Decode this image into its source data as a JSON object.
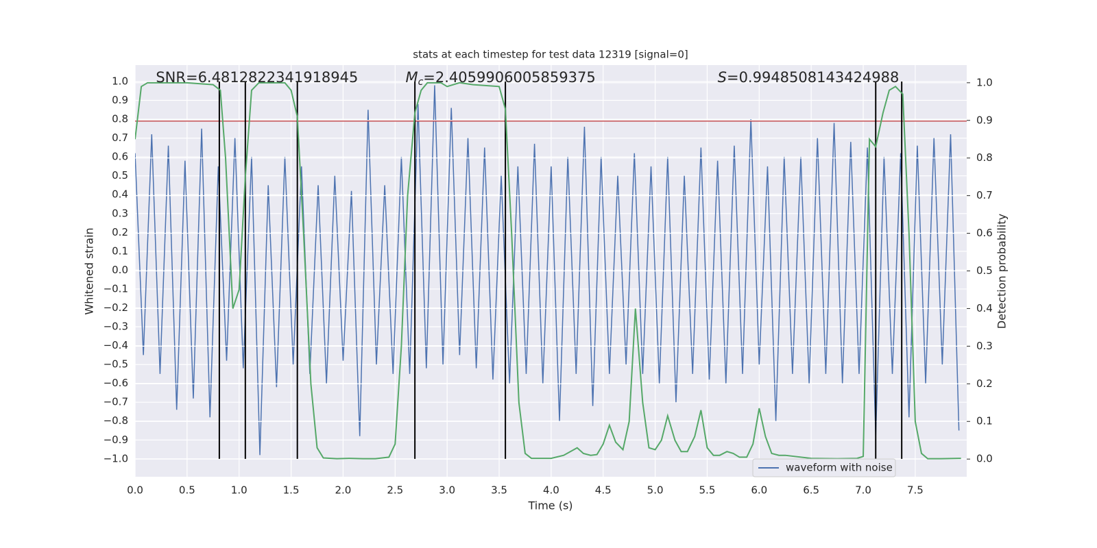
{
  "chart_data": {
    "type": "line",
    "title": "stats at each timestep for test data 12319 [signal=0]",
    "xlabel": "Time (s)",
    "ylabel": "Whitened strain",
    "y2label": "Detection probability",
    "grid": true,
    "background": "#eaeaf2",
    "legend": "lower right",
    "xlim": [
      0,
      7.995
    ],
    "ylim": [
      -1.095,
      1.087
    ],
    "y2lim": [
      -0.047,
      1.047
    ],
    "xticks": [
      {
        "value": 0,
        "label": "0.0"
      },
      {
        "value": 0.5,
        "label": "0.5"
      },
      {
        "value": 1,
        "label": "1.0"
      },
      {
        "value": 1.5,
        "label": "1.5"
      },
      {
        "value": 2,
        "label": "2.0"
      },
      {
        "value": 2.5,
        "label": "2.5"
      },
      {
        "value": 3,
        "label": "3.0"
      },
      {
        "value": 3.5,
        "label": "3.5"
      },
      {
        "value": 4,
        "label": "4.0"
      },
      {
        "value": 4.5,
        "label": "4.5"
      },
      {
        "value": 5,
        "label": "5.0"
      },
      {
        "value": 5.5,
        "label": "5.5"
      },
      {
        "value": 6,
        "label": "6.0"
      },
      {
        "value": 6.5,
        "label": "6.5"
      },
      {
        "value": 7,
        "label": "7.0"
      },
      {
        "value": 7.5,
        "label": "7.5"
      }
    ],
    "yticks": [
      {
        "value": -1,
        "label": "−1.0"
      },
      {
        "value": -0.9,
        "label": "−0.9"
      },
      {
        "value": -0.8,
        "label": "−0.8"
      },
      {
        "value": -0.7,
        "label": "−0.7"
      },
      {
        "value": -0.6,
        "label": "−0.6"
      },
      {
        "value": -0.5,
        "label": "−0.5"
      },
      {
        "value": -0.4,
        "label": "−0.4"
      },
      {
        "value": -0.3,
        "label": "−0.3"
      },
      {
        "value": -0.2,
        "label": "−0.2"
      },
      {
        "value": -0.1,
        "label": "−0.1"
      },
      {
        "value": 0,
        "label": "0.0"
      },
      {
        "value": 0.1,
        "label": "0.1"
      },
      {
        "value": 0.2,
        "label": "0.2"
      },
      {
        "value": 0.3,
        "label": "0.3"
      },
      {
        "value": 0.4,
        "label": "0.4"
      },
      {
        "value": 0.5,
        "label": "0.5"
      },
      {
        "value": 0.6,
        "label": "0.6"
      },
      {
        "value": 0.7,
        "label": "0.7"
      },
      {
        "value": 0.8,
        "label": "0.8"
      },
      {
        "value": 0.9,
        "label": "0.9"
      },
      {
        "value": 1,
        "label": "1.0"
      }
    ],
    "y2ticks": [
      {
        "value": 0,
        "label": "0.0"
      },
      {
        "value": 0.1,
        "label": "0.1"
      },
      {
        "value": 0.2,
        "label": "0.2"
      },
      {
        "value": 0.3,
        "label": "0.3"
      },
      {
        "value": 0.4,
        "label": "0.4"
      },
      {
        "value": 0.5,
        "label": "0.5"
      },
      {
        "value": 0.6,
        "label": "0.6"
      },
      {
        "value": 0.7,
        "label": "0.7"
      },
      {
        "value": 0.8,
        "label": "0.8"
      },
      {
        "value": 0.9,
        "label": "0.9"
      },
      {
        "value": 1,
        "label": "1.0"
      }
    ],
    "series": [
      {
        "name": "waveform with noise",
        "color": "#4c72b0",
        "x": [
          0,
          0.08,
          0.16,
          0.24,
          0.32,
          0.4,
          0.48,
          0.56,
          0.64,
          0.72,
          0.8,
          0.88,
          0.96,
          1.04,
          1.12,
          1.2,
          1.28,
          1.36,
          1.44,
          1.52,
          1.6,
          1.68,
          1.76,
          1.84,
          1.92,
          2,
          2.08,
          2.16,
          2.24,
          2.32,
          2.4,
          2.48,
          2.56,
          2.64,
          2.72,
          2.8,
          2.88,
          2.96,
          3.04,
          3.12,
          3.2,
          3.28,
          3.36,
          3.44,
          3.52,
          3.6,
          3.68,
          3.76,
          3.84,
          3.92,
          4,
          4.08,
          4.16,
          4.24,
          4.32,
          4.4,
          4.48,
          4.56,
          4.64,
          4.72,
          4.8,
          4.88,
          4.96,
          5.04,
          5.12,
          5.2,
          5.28,
          5.36,
          5.44,
          5.52,
          5.6,
          5.68,
          5.76,
          5.84,
          5.92,
          6,
          6.08,
          6.16,
          6.24,
          6.32,
          6.4,
          6.48,
          6.56,
          6.64,
          6.72,
          6.8,
          6.88,
          6.96,
          7.04,
          7.12,
          7.2,
          7.28,
          7.36,
          7.44,
          7.52,
          7.6,
          7.68,
          7.76,
          7.84,
          7.92
        ],
        "values": [
          0.62,
          -0.45,
          0.72,
          -0.55,
          0.66,
          -0.74,
          0.58,
          -0.68,
          0.75,
          -0.78,
          0.55,
          -0.48,
          0.7,
          -0.52,
          0.6,
          -0.98,
          0.45,
          -0.62,
          0.6,
          -0.5,
          0.55,
          -0.55,
          0.45,
          -0.6,
          0.5,
          -0.48,
          0.42,
          -0.88,
          0.85,
          -0.5,
          0.45,
          -0.55,
          0.6,
          -0.55,
          0.88,
          -0.52,
          0.98,
          -0.5,
          0.86,
          -0.45,
          0.7,
          -0.52,
          0.65,
          -0.58,
          0.5,
          -0.6,
          0.55,
          -0.55,
          0.67,
          -0.6,
          0.55,
          -0.8,
          0.6,
          -0.55,
          0.76,
          -0.72,
          0.6,
          -0.55,
          0.5,
          -0.5,
          0.62,
          -0.55,
          0.55,
          -0.6,
          0.6,
          -0.7,
          0.5,
          -0.55,
          0.65,
          -0.58,
          0.58,
          -0.6,
          0.66,
          -0.55,
          0.8,
          -0.5,
          0.55,
          -0.8,
          0.6,
          -0.55,
          0.6,
          -0.6,
          0.7,
          -0.55,
          0.78,
          -0.6,
          0.68,
          -0.55,
          0.65,
          -0.88,
          0.6,
          -0.55,
          0.62,
          -0.78,
          0.66,
          -0.6,
          0.7,
          -0.5,
          0.72,
          -0.85
        ]
      },
      {
        "color": "#55a868",
        "axis": "y2",
        "x": [
          0,
          0.06,
          0.12,
          0.25,
          0.5,
          0.75,
          0.82,
          0.87,
          0.94,
          1,
          1.06,
          1.12,
          1.19,
          1.31,
          1.44,
          1.5,
          1.56,
          1.62,
          1.69,
          1.75,
          1.81,
          1.94,
          2.06,
          2.19,
          2.31,
          2.44,
          2.5,
          2.56,
          2.62,
          2.69,
          2.75,
          2.81,
          2.94,
          3,
          3.12,
          3.25,
          3.5,
          3.56,
          3.62,
          3.69,
          3.75,
          3.81,
          4,
          4.12,
          4.25,
          4.31,
          4.38,
          4.44,
          4.5,
          4.56,
          4.62,
          4.69,
          4.75,
          4.81,
          4.88,
          4.94,
          5,
          5.06,
          5.12,
          5.19,
          5.25,
          5.31,
          5.38,
          5.44,
          5.5,
          5.56,
          5.62,
          5.69,
          5.75,
          5.81,
          5.88,
          5.94,
          6,
          6.06,
          6.12,
          6.19,
          6.25,
          6.5,
          6.75,
          6.94,
          7,
          7.06,
          7.12,
          7.19,
          7.25,
          7.31,
          7.38,
          7.44,
          7.5,
          7.56,
          7.62,
          7.75,
          7.94
        ],
        "values": [
          0.85,
          0.99,
          1,
          1,
          1,
          0.995,
          0.98,
          0.8,
          0.4,
          0.45,
          0.75,
          0.98,
          1,
          1,
          1,
          0.98,
          0.91,
          0.6,
          0.2,
          0.03,
          0.003,
          0.001,
          0.002,
          0.001,
          0.001,
          0.005,
          0.04,
          0.3,
          0.7,
          0.92,
          0.98,
          1,
          1,
          0.99,
          1,
          0.995,
          0.99,
          0.93,
          0.6,
          0.15,
          0.015,
          0.002,
          0.002,
          0.01,
          0.03,
          0.015,
          0.01,
          0.012,
          0.04,
          0.09,
          0.045,
          0.025,
          0.1,
          0.4,
          0.15,
          0.03,
          0.025,
          0.05,
          0.115,
          0.05,
          0.02,
          0.02,
          0.06,
          0.13,
          0.03,
          0.01,
          0.01,
          0.02,
          0.015,
          0.005,
          0.005,
          0.04,
          0.135,
          0.06,
          0.015,
          0.01,
          0.01,
          0.002,
          0.001,
          0.002,
          0.007,
          0.85,
          0.83,
          0.92,
          0.98,
          0.99,
          0.97,
          0.6,
          0.1,
          0.015,
          0.001,
          0.001,
          0.002
        ]
      }
    ],
    "hlines": [
      {
        "y": 0.79,
        "color": "#c44e52"
      }
    ],
    "vlines": {
      "x": [
        0.81,
        1.06,
        1.56,
        2.69,
        3.56,
        7.12,
        7.37
      ],
      "ymin": -1,
      "ymax": 1,
      "color": "#000000"
    },
    "annotations": [
      {
        "text": "SNR=6.4812822341918945"
      },
      {
        "symbol": "M",
        "subscript": "c",
        "text": "=2.4059906005859375"
      },
      {
        "symbol": "S",
        "text": "=0.9948508143424988"
      }
    ]
  }
}
